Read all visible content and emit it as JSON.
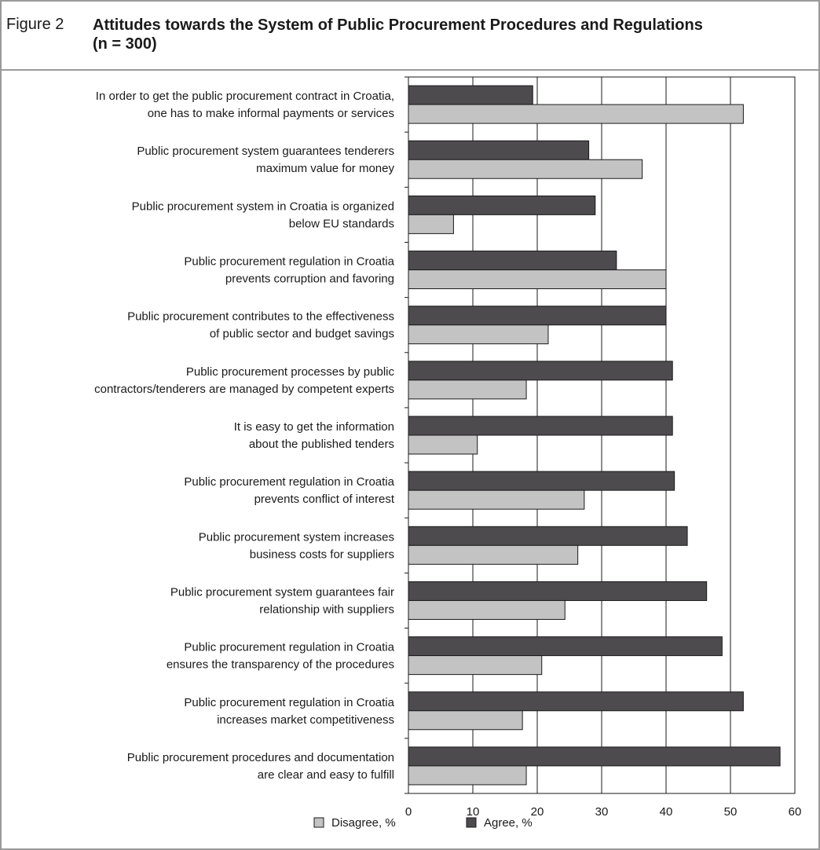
{
  "figure": {
    "label": "Figure 2",
    "title_line1": "Attitudes towards the System of Public Procurement Procedures and Regulations",
    "title_line2": "(n = 300)"
  },
  "colors": {
    "agree": "#4d4b4e",
    "disagree": "#c3c3c3",
    "bar_stroke": "#1a1a1a",
    "grid": "#1a1a1a"
  },
  "chart_data": {
    "type": "bar",
    "orientation": "horizontal",
    "xlim": [
      0,
      60
    ],
    "xticks": [
      0,
      10,
      20,
      30,
      40,
      50,
      60
    ],
    "grid": true,
    "legend_position": "bottom",
    "categories": [
      [
        "In order to get the public procurement contract in Croatia,",
        "one has to make informal payments or services"
      ],
      [
        "Public procurement system guarantees tenderers",
        "maximum value for money"
      ],
      [
        "Public procurement system in Croatia is organized",
        "below EU standards"
      ],
      [
        "Public procurement regulation in Croatia",
        "prevents corruption and favoring"
      ],
      [
        "Public procurement contributes to the effectiveness",
        "of public sector and budget savings"
      ],
      [
        "Public procurement processes by public",
        "contractors/tenderers are managed by competent experts"
      ],
      [
        "It is easy to get the information",
        "about the published tenders"
      ],
      [
        "Public procurement regulation in Croatia",
        "prevents conflict of interest"
      ],
      [
        "Public procurement system increases",
        "business costs for suppliers"
      ],
      [
        "Public procurement system guarantees fair",
        "relationship with suppliers"
      ],
      [
        "Public procurement regulation in Croatia",
        "ensures the transparency of the procedures"
      ],
      [
        "Public procurement regulation in Croatia",
        "increases market competitiveness"
      ],
      [
        "Public procurement procedures and documentation",
        "are clear and easy to fulfill"
      ]
    ],
    "series": [
      {
        "name": "Agree, %",
        "values": [
          19.3,
          28,
          29,
          32.3,
          40,
          41,
          41,
          41.3,
          43.3,
          46.3,
          48.7,
          52,
          57.7
        ]
      },
      {
        "name": "Disagree, %",
        "values": [
          52,
          36.3,
          7,
          40,
          21.7,
          18.3,
          10.7,
          27.3,
          26.3,
          24.3,
          20.7,
          17.7,
          18.3
        ]
      }
    ],
    "legend": [
      "Disagree, %",
      "Agree, %"
    ]
  }
}
